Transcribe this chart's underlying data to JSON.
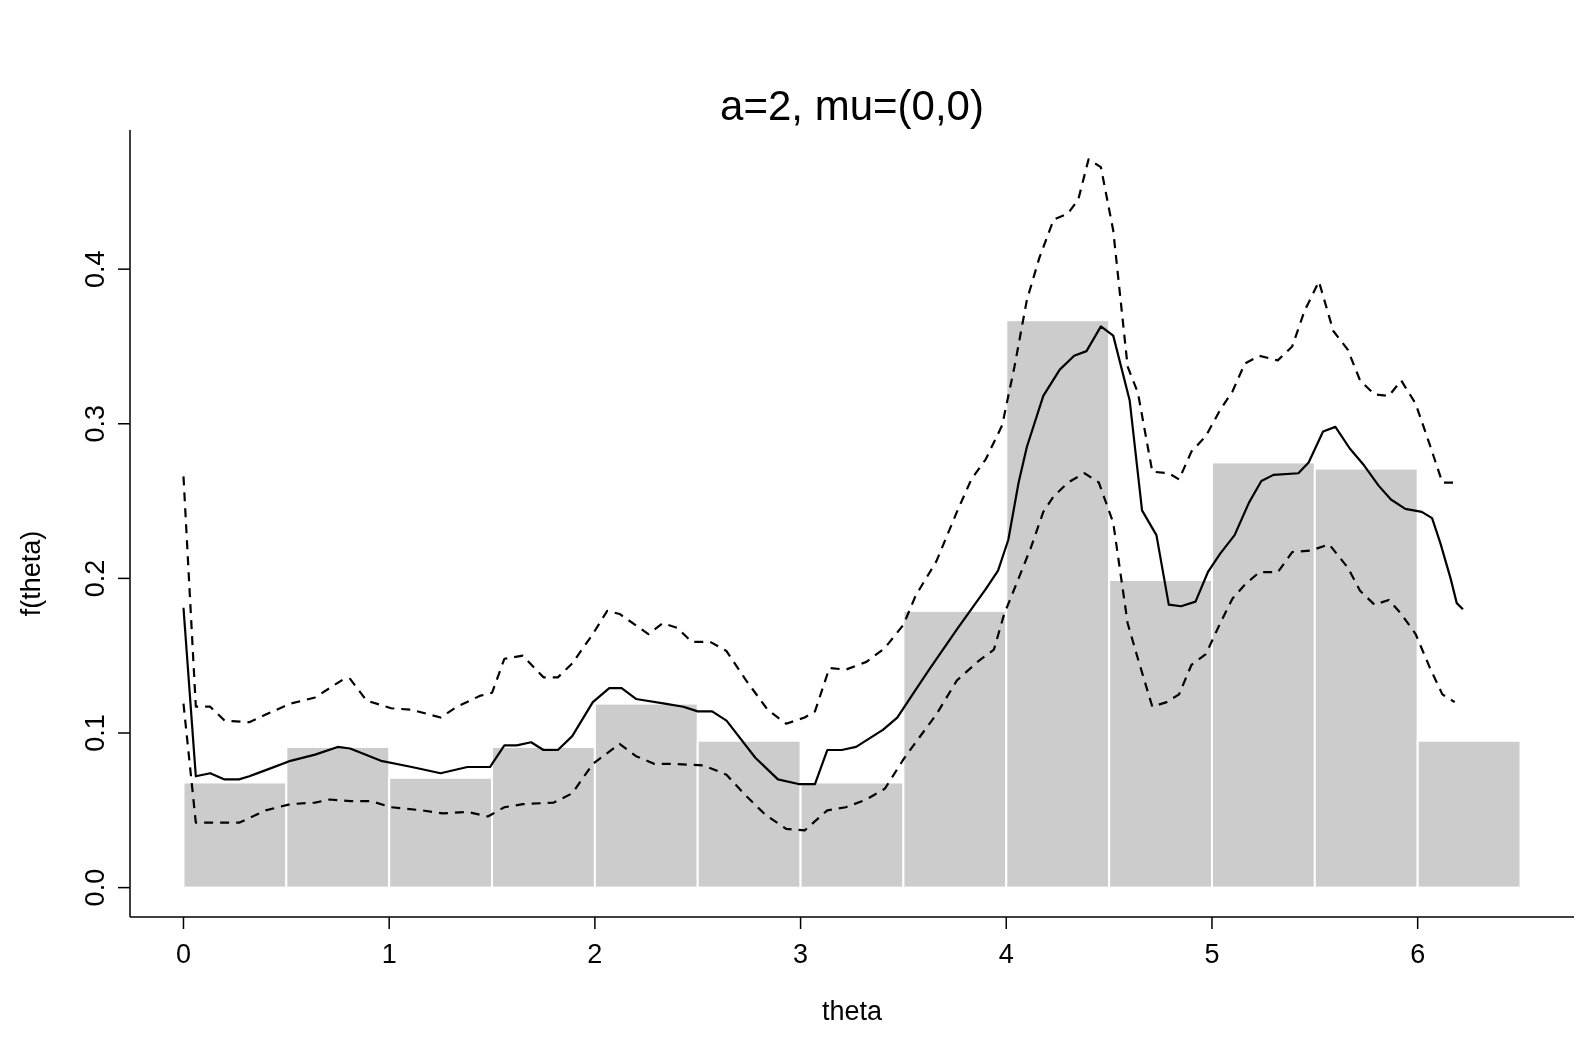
{
  "chart_data": {
    "type": "histogram",
    "title": "a=2, mu=(0,0)",
    "xlabel": "theta",
    "ylabel": "f(theta)",
    "bins": [
      0,
      0.5,
      1,
      1.5,
      2,
      2.5,
      3,
      3.5,
      4,
      4.5,
      5,
      5.5,
      6,
      6.5
    ],
    "values": [
      0.068,
      0.091,
      0.071,
      0.091,
      0.119,
      0.095,
      0.068,
      0.179,
      0.367,
      0.199,
      0.275,
      0.271,
      0.095
    ],
    "color": "#cccccc",
    "xlim": [
      -0.26,
      6.76
    ],
    "ylim": [
      -0.019,
      0.49
    ],
    "xticks": [
      0,
      1,
      2,
      3,
      4,
      5,
      6
    ],
    "yticks": [
      {
        "value": 0,
        "label": "0.0"
      },
      {
        "value": 0.1,
        "label": "0.1"
      },
      {
        "value": 0.2,
        "label": "0.2"
      },
      {
        "value": 0.3,
        "label": "0.3"
      },
      {
        "value": 0.4,
        "label": "0.4"
      }
    ],
    "grid": false,
    "series": [
      {
        "type": "line",
        "color": "#000000",
        "line_style": "solid",
        "x": [
          0,
          0.06,
          0.13,
          0.2,
          0.27,
          0.32,
          0.4,
          0.52,
          0.64,
          0.75,
          0.81,
          0.96,
          1.11,
          1.25,
          1.38,
          1.49,
          1.56,
          1.62,
          1.69,
          1.75,
          1.82,
          1.89,
          1.99,
          2.07,
          2.13,
          2.2,
          2.34,
          2.43,
          2.5,
          2.57,
          2.64,
          2.78,
          2.89,
          2.99,
          3.07,
          3.13,
          3.2,
          3.27,
          3.4,
          3.47,
          3.54,
          3.62,
          3.76,
          3.9,
          3.96,
          4.01,
          4.06,
          4.1,
          4.18,
          4.26,
          4.33,
          4.39,
          4.46,
          4.52,
          4.6,
          4.66,
          4.73,
          4.79,
          4.85,
          4.92,
          4.98,
          5.04,
          5.11,
          5.18,
          5.24,
          5.3,
          5.42,
          5.47,
          5.54,
          5.6,
          5.67,
          5.74,
          5.81,
          5.87,
          5.94,
          6.02,
          6.07,
          6.11,
          6.16,
          6.19,
          6.22
        ],
        "values": [
          0.181,
          0.072,
          0.074,
          0.07,
          0.07,
          0.072,
          0.076,
          0.082,
          0.086,
          0.091,
          0.09,
          0.082,
          0.078,
          0.074,
          0.078,
          0.078,
          0.092,
          0.092,
          0.094,
          0.089,
          0.089,
          0.098,
          0.12,
          0.129,
          0.129,
          0.122,
          0.119,
          0.117,
          0.114,
          0.114,
          0.108,
          0.084,
          0.07,
          0.067,
          0.067,
          0.089,
          0.089,
          0.091,
          0.102,
          0.11,
          0.124,
          0.14,
          0.167,
          0.193,
          0.205,
          0.225,
          0.262,
          0.285,
          0.318,
          0.335,
          0.344,
          0.347,
          0.363,
          0.357,
          0.315,
          0.244,
          0.228,
          0.183,
          0.182,
          0.185,
          0.204,
          0.216,
          0.228,
          0.249,
          0.263,
          0.267,
          0.268,
          0.275,
          0.295,
          0.298,
          0.284,
          0.273,
          0.26,
          0.251,
          0.245,
          0.243,
          0.239,
          0.223,
          0.2,
          0.184,
          0.18
        ]
      },
      {
        "type": "line",
        "color": "#000000",
        "line_style": "dashed",
        "x": [
          0,
          0.06,
          0.13,
          0.2,
          0.32,
          0.4,
          0.52,
          0.64,
          0.78,
          0.81,
          0.89,
          1.01,
          1.11,
          1.25,
          1.33,
          1.44,
          1.5,
          1.56,
          1.65,
          1.75,
          1.82,
          1.89,
          1.99,
          2.06,
          2.12,
          2.26,
          2.33,
          2.4,
          2.47,
          2.56,
          2.64,
          2.73,
          2.84,
          2.93,
          3.02,
          3.07,
          3.14,
          3.22,
          3.32,
          3.41,
          3.5,
          3.56,
          3.66,
          3.76,
          3.83,
          3.9,
          3.98,
          4.04,
          4.1,
          4.16,
          4.23,
          4.3,
          4.35,
          4.4,
          4.46,
          4.52,
          4.59,
          4.64,
          4.71,
          4.79,
          4.84,
          4.9,
          4.97,
          5.04,
          5.1,
          5.16,
          5.23,
          5.32,
          5.39,
          5.45,
          5.52,
          5.59,
          5.66,
          5.72,
          5.79,
          5.86,
          5.92,
          5.99,
          6.06,
          6.12,
          6.18
        ],
        "values": [
          0.266,
          0.117,
          0.117,
          0.108,
          0.107,
          0.112,
          0.119,
          0.123,
          0.135,
          0.135,
          0.121,
          0.116,
          0.115,
          0.11,
          0.117,
          0.124,
          0.126,
          0.148,
          0.15,
          0.136,
          0.136,
          0.145,
          0.164,
          0.179,
          0.177,
          0.164,
          0.171,
          0.168,
          0.159,
          0.159,
          0.153,
          0.135,
          0.115,
          0.106,
          0.11,
          0.114,
          0.142,
          0.141,
          0.146,
          0.155,
          0.17,
          0.189,
          0.211,
          0.243,
          0.264,
          0.277,
          0.299,
          0.337,
          0.38,
          0.407,
          0.432,
          0.436,
          0.445,
          0.471,
          0.466,
          0.425,
          0.337,
          0.32,
          0.269,
          0.268,
          0.264,
          0.282,
          0.292,
          0.309,
          0.321,
          0.339,
          0.344,
          0.341,
          0.35,
          0.373,
          0.392,
          0.36,
          0.348,
          0.328,
          0.319,
          0.318,
          0.328,
          0.313,
          0.286,
          0.262,
          0.262
        ]
      },
      {
        "type": "line",
        "color": "#000000",
        "line_style": "dashed",
        "x": [
          0,
          0.06,
          0.13,
          0.27,
          0.32,
          0.4,
          0.52,
          0.64,
          0.71,
          0.81,
          0.91,
          1.01,
          1.16,
          1.26,
          1.38,
          1.48,
          1.56,
          1.65,
          1.8,
          1.89,
          1.99,
          2.12,
          2.2,
          2.29,
          2.39,
          2.53,
          2.64,
          2.73,
          2.83,
          2.93,
          3.02,
          3.13,
          3.22,
          3.32,
          3.41,
          3.5,
          3.56,
          3.66,
          3.76,
          3.86,
          3.94,
          3.99,
          4.06,
          4.12,
          4.18,
          4.23,
          4.3,
          4.38,
          4.45,
          4.52,
          4.59,
          4.64,
          4.71,
          4.78,
          4.84,
          4.9,
          4.97,
          5.04,
          5.1,
          5.16,
          5.23,
          5.32,
          5.39,
          5.48,
          5.57,
          5.66,
          5.72,
          5.79,
          5.86,
          5.92,
          5.99,
          6.06,
          6.12,
          6.18
        ],
        "values": [
          0.119,
          0.042,
          0.042,
          0.042,
          0.045,
          0.05,
          0.054,
          0.055,
          0.057,
          0.056,
          0.056,
          0.052,
          0.05,
          0.048,
          0.049,
          0.046,
          0.052,
          0.054,
          0.055,
          0.061,
          0.08,
          0.093,
          0.085,
          0.08,
          0.08,
          0.079,
          0.073,
          0.06,
          0.047,
          0.038,
          0.037,
          0.05,
          0.052,
          0.057,
          0.064,
          0.083,
          0.094,
          0.112,
          0.134,
          0.146,
          0.154,
          0.177,
          0.2,
          0.22,
          0.243,
          0.253,
          0.262,
          0.268,
          0.262,
          0.236,
          0.171,
          0.148,
          0.117,
          0.12,
          0.125,
          0.144,
          0.151,
          0.171,
          0.187,
          0.196,
          0.204,
          0.204,
          0.217,
          0.218,
          0.222,
          0.207,
          0.192,
          0.183,
          0.186,
          0.177,
          0.164,
          0.142,
          0.125,
          0.12
        ]
      }
    ]
  }
}
